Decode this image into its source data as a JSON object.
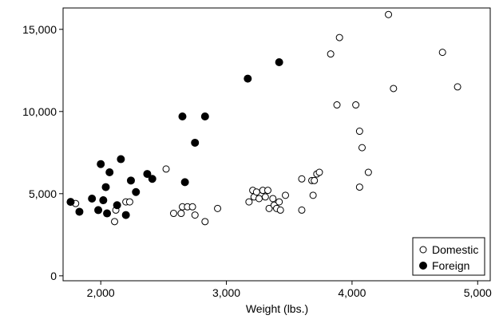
{
  "chart_data": {
    "type": "scatter",
    "title": "",
    "xlabel": "Weight (lbs.)",
    "ylabel": "",
    "xlim": [
      1700,
      5100
    ],
    "ylim": [
      -300,
      16300
    ],
    "x_ticks": [
      2000,
      3000,
      4000,
      5000
    ],
    "x_tick_labels": [
      "2,000",
      "3,000",
      "4,000",
      "5,000"
    ],
    "y_ticks": [
      0,
      5000,
      10000,
      15000
    ],
    "y_tick_labels": [
      "0",
      "5,000",
      "10,000",
      "15,000"
    ],
    "grid": false,
    "legend_position": "bottom-right",
    "series": [
      {
        "name": "Domestic",
        "marker": "hollow-circle",
        "color": "#000000",
        "points": [
          [
            1800,
            4400
          ],
          [
            2110,
            3300
          ],
          [
            2120,
            4000
          ],
          [
            2200,
            4500
          ],
          [
            2230,
            4500
          ],
          [
            2520,
            6500
          ],
          [
            2580,
            3800
          ],
          [
            2640,
            3800
          ],
          [
            2650,
            4200
          ],
          [
            2690,
            4200
          ],
          [
            2730,
            4200
          ],
          [
            2750,
            3700
          ],
          [
            2830,
            3300
          ],
          [
            2930,
            4100
          ],
          [
            3180,
            4500
          ],
          [
            3210,
            5200
          ],
          [
            3220,
            4800
          ],
          [
            3240,
            5100
          ],
          [
            3260,
            4700
          ],
          [
            3290,
            5200
          ],
          [
            3310,
            4800
          ],
          [
            3330,
            5200
          ],
          [
            3340,
            4100
          ],
          [
            3370,
            4700
          ],
          [
            3380,
            4300
          ],
          [
            3400,
            4100
          ],
          [
            3420,
            4500
          ],
          [
            3430,
            4000
          ],
          [
            3470,
            4900
          ],
          [
            3600,
            5900
          ],
          [
            3600,
            4000
          ],
          [
            3680,
            5800
          ],
          [
            3690,
            4900
          ],
          [
            3700,
            5800
          ],
          [
            3720,
            6200
          ],
          [
            3740,
            6300
          ],
          [
            3830,
            13500
          ],
          [
            3880,
            10400
          ],
          [
            3900,
            14500
          ],
          [
            4030,
            10400
          ],
          [
            4060,
            8800
          ],
          [
            4060,
            5400
          ],
          [
            4080,
            7800
          ],
          [
            4130,
            6300
          ],
          [
            4290,
            15900
          ],
          [
            4330,
            11400
          ],
          [
            4720,
            13600
          ],
          [
            4840,
            11500
          ]
        ]
      },
      {
        "name": "Foreign",
        "marker": "filled-circle",
        "color": "#000000",
        "points": [
          [
            1760,
            4500
          ],
          [
            1830,
            3900
          ],
          [
            1930,
            4700
          ],
          [
            1980,
            4000
          ],
          [
            2000,
            6800
          ],
          [
            2020,
            4600
          ],
          [
            2040,
            5400
          ],
          [
            2050,
            3800
          ],
          [
            2070,
            6300
          ],
          [
            2130,
            4300
          ],
          [
            2160,
            7100
          ],
          [
            2200,
            3700
          ],
          [
            2240,
            5800
          ],
          [
            2280,
            5100
          ],
          [
            2370,
            6200
          ],
          [
            2410,
            5900
          ],
          [
            2650,
            9700
          ],
          [
            2670,
            5700
          ],
          [
            2750,
            8100
          ],
          [
            2830,
            9700
          ],
          [
            3170,
            12000
          ],
          [
            3420,
            13000
          ]
        ]
      }
    ]
  }
}
